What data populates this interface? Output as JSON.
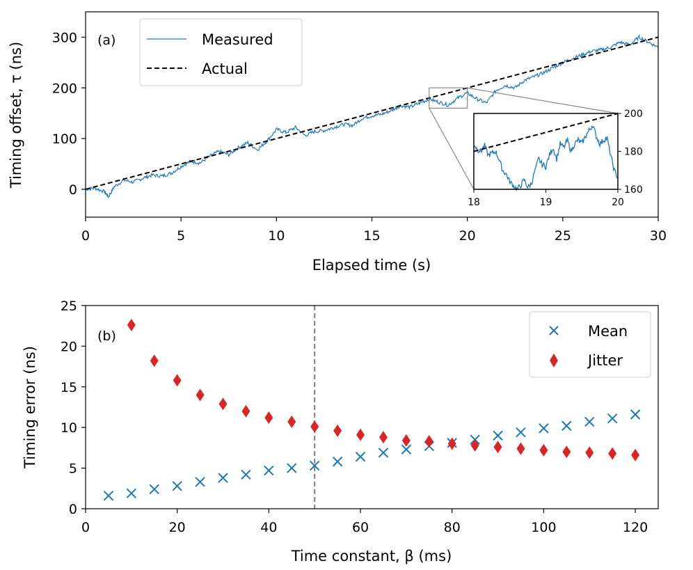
{
  "chart_data": [
    {
      "type": "line",
      "panel_label": "(a)",
      "xlabel": "Elapsed time (s)",
      "ylabel": "Timing offset, τ (ns)",
      "xlim": [
        0,
        30
      ],
      "ylim": [
        -55,
        350
      ],
      "xticks": [
        0,
        5,
        10,
        15,
        20,
        25,
        30
      ],
      "yticks": [
        0,
        100,
        200,
        300
      ],
      "legend_position": "top-left",
      "series": [
        {
          "name": "Measured",
          "style": "solid",
          "color": "#1f77b4",
          "x": [
            0,
            0.5,
            1,
            1.2,
            1.5,
            2,
            2.5,
            3,
            3.5,
            4,
            4.5,
            5,
            5.5,
            6,
            6.5,
            7,
            7.5,
            8,
            8.5,
            9,
            9.5,
            10,
            10.5,
            11,
            11.5,
            12,
            12.5,
            13,
            13.5,
            14,
            14.5,
            15,
            15.5,
            16,
            16.5,
            17,
            17.5,
            18,
            18.5,
            19,
            19.5,
            20,
            20.5,
            21,
            21.5,
            22,
            22.5,
            23,
            23.5,
            24,
            24.5,
            25,
            25.5,
            26,
            26.5,
            27,
            27.5,
            28,
            28.5,
            29,
            29.5,
            30
          ],
          "y": [
            0,
            2,
            -5,
            -15,
            5,
            18,
            14,
            22,
            28,
            26,
            32,
            45,
            55,
            52,
            65,
            75,
            68,
            82,
            92,
            78,
            95,
            118,
            112,
            122,
            106,
            114,
            116,
            122,
            128,
            126,
            140,
            145,
            148,
            155,
            165,
            162,
            170,
            178,
            172,
            166,
            180,
            190,
            178,
            170,
            195,
            205,
            200,
            215,
            222,
            230,
            240,
            250,
            258,
            265,
            272,
            275,
            280,
            290,
            285,
            300,
            290,
            280
          ]
        },
        {
          "name": "Actual",
          "style": "dashed",
          "color": "#000000",
          "x": [
            0,
            30
          ],
          "y": [
            0,
            300
          ]
        }
      ],
      "inset": {
        "xlim": [
          18,
          20
        ],
        "ylim": [
          160,
          200
        ],
        "xticks": [
          18,
          19,
          20
        ],
        "yticks": [
          160,
          180,
          200
        ],
        "measured_x": [
          18,
          18.05,
          18.1,
          18.15,
          18.2,
          18.25,
          18.3,
          18.35,
          18.4,
          18.45,
          18.5,
          18.55,
          18.6,
          18.65,
          18.7,
          18.75,
          18.8,
          18.85,
          18.9,
          18.95,
          19,
          19.05,
          19.1,
          19.15,
          19.2,
          19.25,
          19.3,
          19.35,
          19.4,
          19.45,
          19.5,
          19.55,
          19.6,
          19.65,
          19.7,
          19.75,
          19.8,
          19.85,
          19.9,
          19.95,
          20
        ],
        "measured_y": [
          184,
          181,
          180,
          183,
          178,
          179,
          180,
          176,
          170,
          168,
          164,
          162,
          160,
          162,
          165,
          161,
          163,
          170,
          176,
          173,
          172,
          178,
          182,
          176,
          184,
          182,
          186,
          180,
          184,
          186,
          184,
          188,
          191,
          194,
          188,
          184,
          186,
          187,
          178,
          170,
          166
        ]
      }
    },
    {
      "type": "scatter",
      "panel_label": "(b)",
      "xlabel": "Time constant, β (ms)",
      "ylabel": "Timing error (ns)",
      "xlim": [
        0,
        125
      ],
      "ylim": [
        0,
        25
      ],
      "xticks": [
        0,
        20,
        40,
        60,
        80,
        100,
        120
      ],
      "yticks": [
        0,
        5,
        10,
        15,
        20,
        25
      ],
      "vline_x": 50,
      "legend_position": "top-right",
      "series": [
        {
          "name": "Mean",
          "marker": "x",
          "color": "#1f77b4",
          "x": [
            5,
            10,
            15,
            20,
            25,
            30,
            35,
            40,
            45,
            50,
            55,
            60,
            65,
            70,
            75,
            80,
            85,
            90,
            95,
            100,
            105,
            110,
            115,
            120
          ],
          "y": [
            1.6,
            1.9,
            2.4,
            2.8,
            3.3,
            3.8,
            4.2,
            4.7,
            5.0,
            5.3,
            5.8,
            6.4,
            6.9,
            7.3,
            7.7,
            8.1,
            8.5,
            9.0,
            9.4,
            9.9,
            10.2,
            10.7,
            11.1,
            11.6
          ]
        },
        {
          "name": "Jitter",
          "marker": "diamond",
          "color": "#d62728",
          "x": [
            10,
            15,
            20,
            25,
            30,
            35,
            40,
            45,
            50,
            55,
            60,
            65,
            70,
            75,
            80,
            85,
            90,
            95,
            100,
            105,
            110,
            115,
            120
          ],
          "y": [
            22.6,
            18.2,
            15.8,
            14.0,
            12.9,
            12.0,
            11.2,
            10.7,
            10.1,
            9.6,
            9.1,
            8.8,
            8.4,
            8.3,
            8.0,
            7.8,
            7.6,
            7.4,
            7.2,
            7.0,
            6.9,
            6.8,
            6.6
          ]
        }
      ]
    }
  ]
}
